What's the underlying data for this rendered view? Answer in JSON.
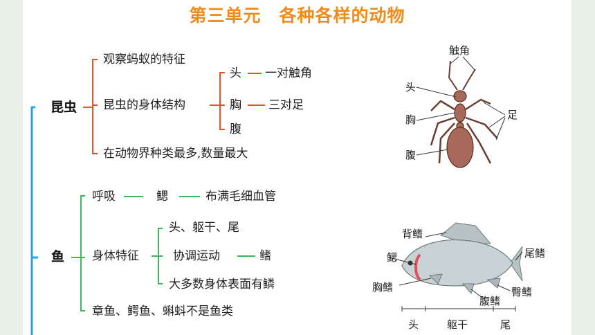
{
  "title": "第三单元　各种各样的动物",
  "insect": {
    "label": "昆虫",
    "items": [
      "观察蚂蚁的特征",
      "昆虫的身体结构",
      "在动物界种类最多,数量最大"
    ],
    "parts": [
      "头",
      "胸",
      "腹"
    ],
    "part_details": [
      "一对触角",
      "三对足"
    ]
  },
  "fish": {
    "label": "鱼",
    "breath": "呼吸",
    "gill": "鳃",
    "gill_detail": "布满毛细血管",
    "body": "身体特征",
    "body_items": [
      "头、躯干、尾",
      "协调运动",
      "大多数身体表面有鳞"
    ],
    "fin": "鳍",
    "note": "章鱼、鳄鱼、蝌蚪不是鱼类"
  },
  "ant_labels": {
    "antenna": "触角",
    "head": "头",
    "thorax": "胸",
    "abdomen": "腹",
    "legs": "足"
  },
  "fish_labels": {
    "dorsal_fin": "背鳍",
    "tail_fin": "尾鳍",
    "gill": "鳃",
    "pectoral_fin": "胸鳍",
    "anal_fin": "臀鳍",
    "pelvic_fin": "腹鳍",
    "head": "头",
    "trunk": "躯干",
    "tail": "尾"
  },
  "colors": {
    "title": "#f08c1b",
    "root_line": "#29a3e0",
    "insect_line": "#e8502a",
    "fish_line": "#3cb45a",
    "ant_body": "#a8685a",
    "fish_body": "#c9d3d5"
  }
}
